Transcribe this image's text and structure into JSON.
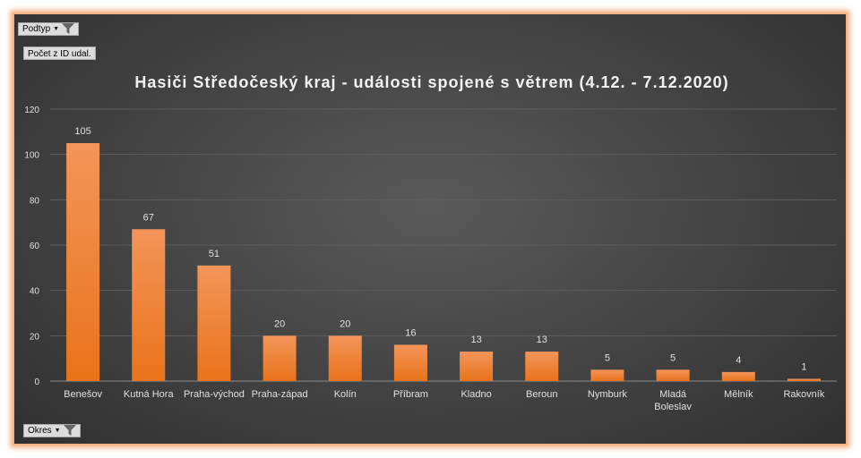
{
  "filters": {
    "subtype_label": "Podtyp",
    "value_field_label": "Počet z ID udal.",
    "axis_field_label": "Okres",
    "filter_icon": "funnel-filter-icon"
  },
  "colors": {
    "bar_top": "#f4955a",
    "bar_bottom": "#e8731a",
    "border_glow": "#f4b183",
    "text": "#e0e0e0"
  },
  "chart_data": {
    "type": "bar",
    "title": "Hasiči Středočeský kraj - události spojené s větrem (4.12. - 7.12.2020)",
    "xlabel": "",
    "ylabel": "",
    "ylim": [
      0,
      120
    ],
    "yticks": [
      0,
      20,
      40,
      60,
      80,
      100,
      120
    ],
    "grid": true,
    "categories": [
      "Benešov",
      "Kutná Hora",
      "Praha-východ",
      "Praha-západ",
      "Kolín",
      "Příbram",
      "Kladno",
      "Beroun",
      "Nymburk",
      "Mladá Boleslav",
      "Mělník",
      "Rakovník"
    ],
    "category_lines": [
      [
        "Benešov"
      ],
      [
        "Kutná Hora"
      ],
      [
        "Praha-východ"
      ],
      [
        "Praha-západ"
      ],
      [
        "Kolín"
      ],
      [
        "Příbram"
      ],
      [
        "Kladno"
      ],
      [
        "Beroun"
      ],
      [
        "Nymburk"
      ],
      [
        "Mladá",
        "Boleslav"
      ],
      [
        "Mělník"
      ],
      [
        "Rakovník"
      ]
    ],
    "values": [
      105,
      67,
      51,
      20,
      20,
      16,
      13,
      13,
      5,
      5,
      4,
      1
    ]
  }
}
